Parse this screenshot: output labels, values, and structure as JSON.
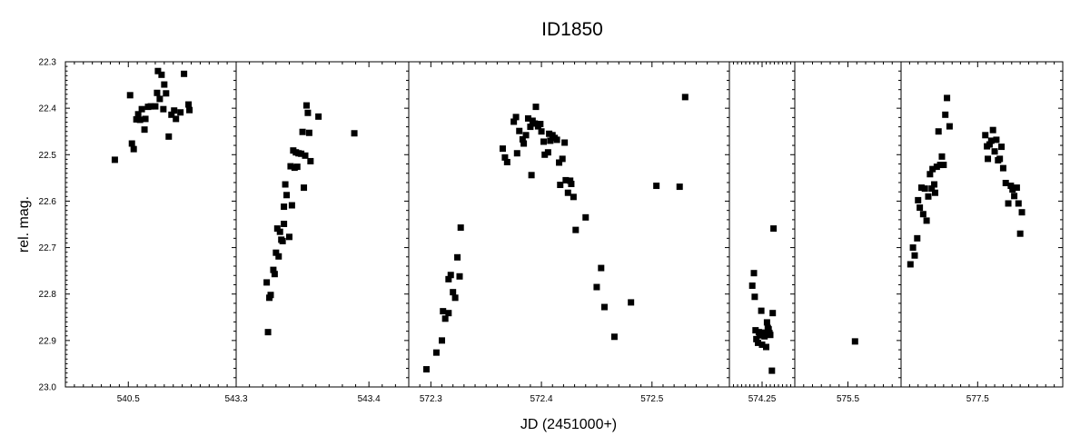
{
  "chart_data": {
    "type": "scatter",
    "title": "ID1850",
    "xlabel": "JD (2451000+)",
    "ylabel": "rel. mag.",
    "y_inverted": true,
    "ylim": [
      22.3,
      23.0
    ],
    "y_ticks": [
      "22.3",
      "22.4",
      "22.5",
      "22.6",
      "22.7",
      "22.8",
      "22.9",
      "23.0"
    ],
    "marker": "filled-square",
    "marker_color": "#000000",
    "panels": [
      {
        "xlim": [
          540.43,
          540.62
        ],
        "x_ticks": [
          {
            "value": 540.5,
            "label": "540.5"
          }
        ],
        "points": [
          [
            540.485,
            22.511
          ],
          [
            540.502,
            22.372
          ],
          [
            540.504,
            22.476
          ],
          [
            540.506,
            22.488
          ],
          [
            540.509,
            22.424
          ],
          [
            540.511,
            22.413
          ],
          [
            540.513,
            22.425
          ],
          [
            540.515,
            22.402
          ],
          [
            540.518,
            22.446
          ],
          [
            540.519,
            22.423
          ],
          [
            540.522,
            22.397
          ],
          [
            540.525,
            22.396
          ],
          [
            540.53,
            22.396
          ],
          [
            540.532,
            22.367
          ],
          [
            540.533,
            22.32
          ],
          [
            540.535,
            22.38
          ],
          [
            540.537,
            22.328
          ],
          [
            540.539,
            22.402
          ],
          [
            540.54,
            22.349
          ],
          [
            540.542,
            22.368
          ],
          [
            540.545,
            22.461
          ],
          [
            540.548,
            22.414
          ],
          [
            540.551,
            22.405
          ],
          [
            540.553,
            22.423
          ],
          [
            540.558,
            22.409
          ],
          [
            540.562,
            22.326
          ],
          [
            540.567,
            22.392
          ],
          [
            540.568,
            22.404
          ]
        ]
      },
      {
        "xlim": [
          543.3,
          543.43
        ],
        "x_ticks": [
          {
            "value": 543.3,
            "label": "543.3"
          },
          {
            "value": 543.4,
            "label": "543.4"
          }
        ],
        "points": [
          [
            543.323,
            22.775
          ],
          [
            543.324,
            22.882
          ],
          [
            543.325,
            22.808
          ],
          [
            543.326,
            22.802
          ],
          [
            543.328,
            22.748
          ],
          [
            543.329,
            22.757
          ],
          [
            543.33,
            22.711
          ],
          [
            543.331,
            22.659
          ],
          [
            543.332,
            22.719
          ],
          [
            543.333,
            22.666
          ],
          [
            543.334,
            22.683
          ],
          [
            543.335,
            22.686
          ],
          [
            543.336,
            22.649
          ],
          [
            543.336,
            22.612
          ],
          [
            543.337,
            22.564
          ],
          [
            543.338,
            22.587
          ],
          [
            543.34,
            22.677
          ],
          [
            543.341,
            22.525
          ],
          [
            543.342,
            22.609
          ],
          [
            543.343,
            22.491
          ],
          [
            543.344,
            22.528
          ],
          [
            543.345,
            22.495
          ],
          [
            543.346,
            22.526
          ],
          [
            543.347,
            22.497
          ],
          [
            543.349,
            22.498
          ],
          [
            543.35,
            22.451
          ],
          [
            543.351,
            22.571
          ],
          [
            543.352,
            22.502
          ],
          [
            543.353,
            22.394
          ],
          [
            543.354,
            22.41
          ],
          [
            543.355,
            22.453
          ],
          [
            543.356,
            22.514
          ],
          [
            543.362,
            22.418
          ],
          [
            543.389,
            22.454
          ]
        ]
      },
      {
        "xlim": [
          572.28,
          572.57
        ],
        "x_ticks": [
          {
            "value": 572.3,
            "label": "572.3"
          },
          {
            "value": 572.4,
            "label": "572.4"
          },
          {
            "value": 572.5,
            "label": "572.5"
          }
        ],
        "points": [
          [
            572.296,
            22.962
          ],
          [
            572.305,
            22.926
          ],
          [
            572.31,
            22.9
          ],
          [
            572.311,
            22.837
          ],
          [
            572.313,
            22.853
          ],
          [
            572.316,
            22.768
          ],
          [
            572.316,
            22.841
          ],
          [
            572.318,
            22.759
          ],
          [
            572.32,
            22.796
          ],
          [
            572.322,
            22.808
          ],
          [
            572.324,
            22.721
          ],
          [
            572.326,
            22.762
          ],
          [
            572.327,
            22.657
          ],
          [
            572.365,
            22.487
          ],
          [
            572.367,
            22.506
          ],
          [
            572.369,
            22.516
          ],
          [
            572.375,
            22.429
          ],
          [
            572.377,
            22.419
          ],
          [
            572.378,
            22.497
          ],
          [
            572.38,
            22.449
          ],
          [
            572.383,
            22.467
          ],
          [
            572.384,
            22.476
          ],
          [
            572.386,
            22.458
          ],
          [
            572.388,
            22.422
          ],
          [
            572.39,
            22.44
          ],
          [
            572.391,
            22.544
          ],
          [
            572.392,
            22.427
          ],
          [
            572.394,
            22.433
          ],
          [
            572.395,
            22.397
          ],
          [
            572.397,
            22.439
          ],
          [
            572.399,
            22.434
          ],
          [
            572.4,
            22.45
          ],
          [
            572.402,
            22.472
          ],
          [
            572.403,
            22.5
          ],
          [
            572.406,
            22.495
          ],
          [
            572.407,
            22.455
          ],
          [
            572.408,
            22.47
          ],
          [
            572.41,
            22.458
          ],
          [
            572.412,
            22.464
          ],
          [
            572.414,
            22.468
          ],
          [
            572.416,
            22.517
          ],
          [
            572.417,
            22.565
          ],
          [
            572.419,
            22.509
          ],
          [
            572.421,
            22.474
          ],
          [
            572.422,
            22.555
          ],
          [
            572.424,
            22.582
          ],
          [
            572.426,
            22.556
          ],
          [
            572.427,
            22.563
          ],
          [
            572.429,
            22.591
          ],
          [
            572.431,
            22.662
          ],
          [
            572.44,
            22.635
          ],
          [
            572.45,
            22.785
          ],
          [
            572.454,
            22.744
          ],
          [
            572.457,
            22.828
          ],
          [
            572.466,
            22.892
          ],
          [
            572.481,
            22.818
          ],
          [
            572.504,
            22.567
          ],
          [
            572.525,
            22.569
          ],
          [
            572.53,
            22.376
          ]
        ]
      },
      {
        "xlim": [
          574.21,
          574.29
        ],
        "x_ticks": [
          {
            "value": 574.25,
            "label": "574.25"
          }
        ],
        "points": [
          [
            574.238,
            22.782
          ],
          [
            574.24,
            22.755
          ],
          [
            574.241,
            22.806
          ],
          [
            574.242,
            22.878
          ],
          [
            574.243,
            22.897
          ],
          [
            574.245,
            22.905
          ],
          [
            574.246,
            22.882
          ],
          [
            574.247,
            22.889
          ],
          [
            574.249,
            22.836
          ],
          [
            574.25,
            22.909
          ],
          [
            574.252,
            22.883
          ],
          [
            574.253,
            22.891
          ],
          [
            574.255,
            22.914
          ],
          [
            574.256,
            22.861
          ],
          [
            574.257,
            22.873
          ],
          [
            574.258,
            22.876
          ],
          [
            574.259,
            22.884
          ],
          [
            574.26,
            22.888
          ],
          [
            574.262,
            22.965
          ],
          [
            574.263,
            22.841
          ],
          [
            574.264,
            22.659
          ]
        ]
      },
      {
        "xlim": [
          575.44,
          575.56
        ],
        "x_ticks": [
          {
            "value": 575.5,
            "label": "575.5"
          }
        ],
        "points": [
          [
            575.508,
            22.902
          ]
        ]
      },
      {
        "xlim": [
          577.41,
          577.6
        ],
        "x_ticks": [
          {
            "value": 577.5,
            "label": "577.5"
          }
        ],
        "points": [
          [
            577.421,
            22.736
          ],
          [
            577.424,
            22.7
          ],
          [
            577.426,
            22.717
          ],
          [
            577.429,
            22.68
          ],
          [
            577.43,
            22.598
          ],
          [
            577.432,
            22.614
          ],
          [
            577.434,
            22.571
          ],
          [
            577.436,
            22.628
          ],
          [
            577.438,
            22.573
          ],
          [
            577.44,
            22.642
          ],
          [
            577.442,
            22.59
          ],
          [
            577.444,
            22.542
          ],
          [
            577.446,
            22.573
          ],
          [
            577.447,
            22.531
          ],
          [
            577.449,
            22.564
          ],
          [
            577.45,
            22.582
          ],
          [
            577.452,
            22.526
          ],
          [
            577.454,
            22.45
          ],
          [
            577.456,
            22.522
          ],
          [
            577.458,
            22.504
          ],
          [
            577.46,
            22.522
          ],
          [
            577.462,
            22.414
          ],
          [
            577.464,
            22.378
          ],
          [
            577.467,
            22.439
          ],
          [
            577.509,
            22.458
          ],
          [
            577.511,
            22.482
          ],
          [
            577.512,
            22.509
          ],
          [
            577.514,
            22.478
          ],
          [
            577.516,
            22.47
          ],
          [
            577.518,
            22.447
          ],
          [
            577.52,
            22.493
          ],
          [
            577.522,
            22.468
          ],
          [
            577.524,
            22.512
          ],
          [
            577.526,
            22.509
          ],
          [
            577.528,
            22.483
          ],
          [
            577.53,
            22.529
          ],
          [
            577.533,
            22.561
          ],
          [
            577.536,
            22.605
          ],
          [
            577.539,
            22.567
          ],
          [
            577.541,
            22.575
          ],
          [
            577.543,
            22.589
          ],
          [
            577.546,
            22.571
          ],
          [
            577.548,
            22.605
          ],
          [
            577.55,
            22.67
          ],
          [
            577.552,
            22.624
          ]
        ]
      }
    ]
  }
}
